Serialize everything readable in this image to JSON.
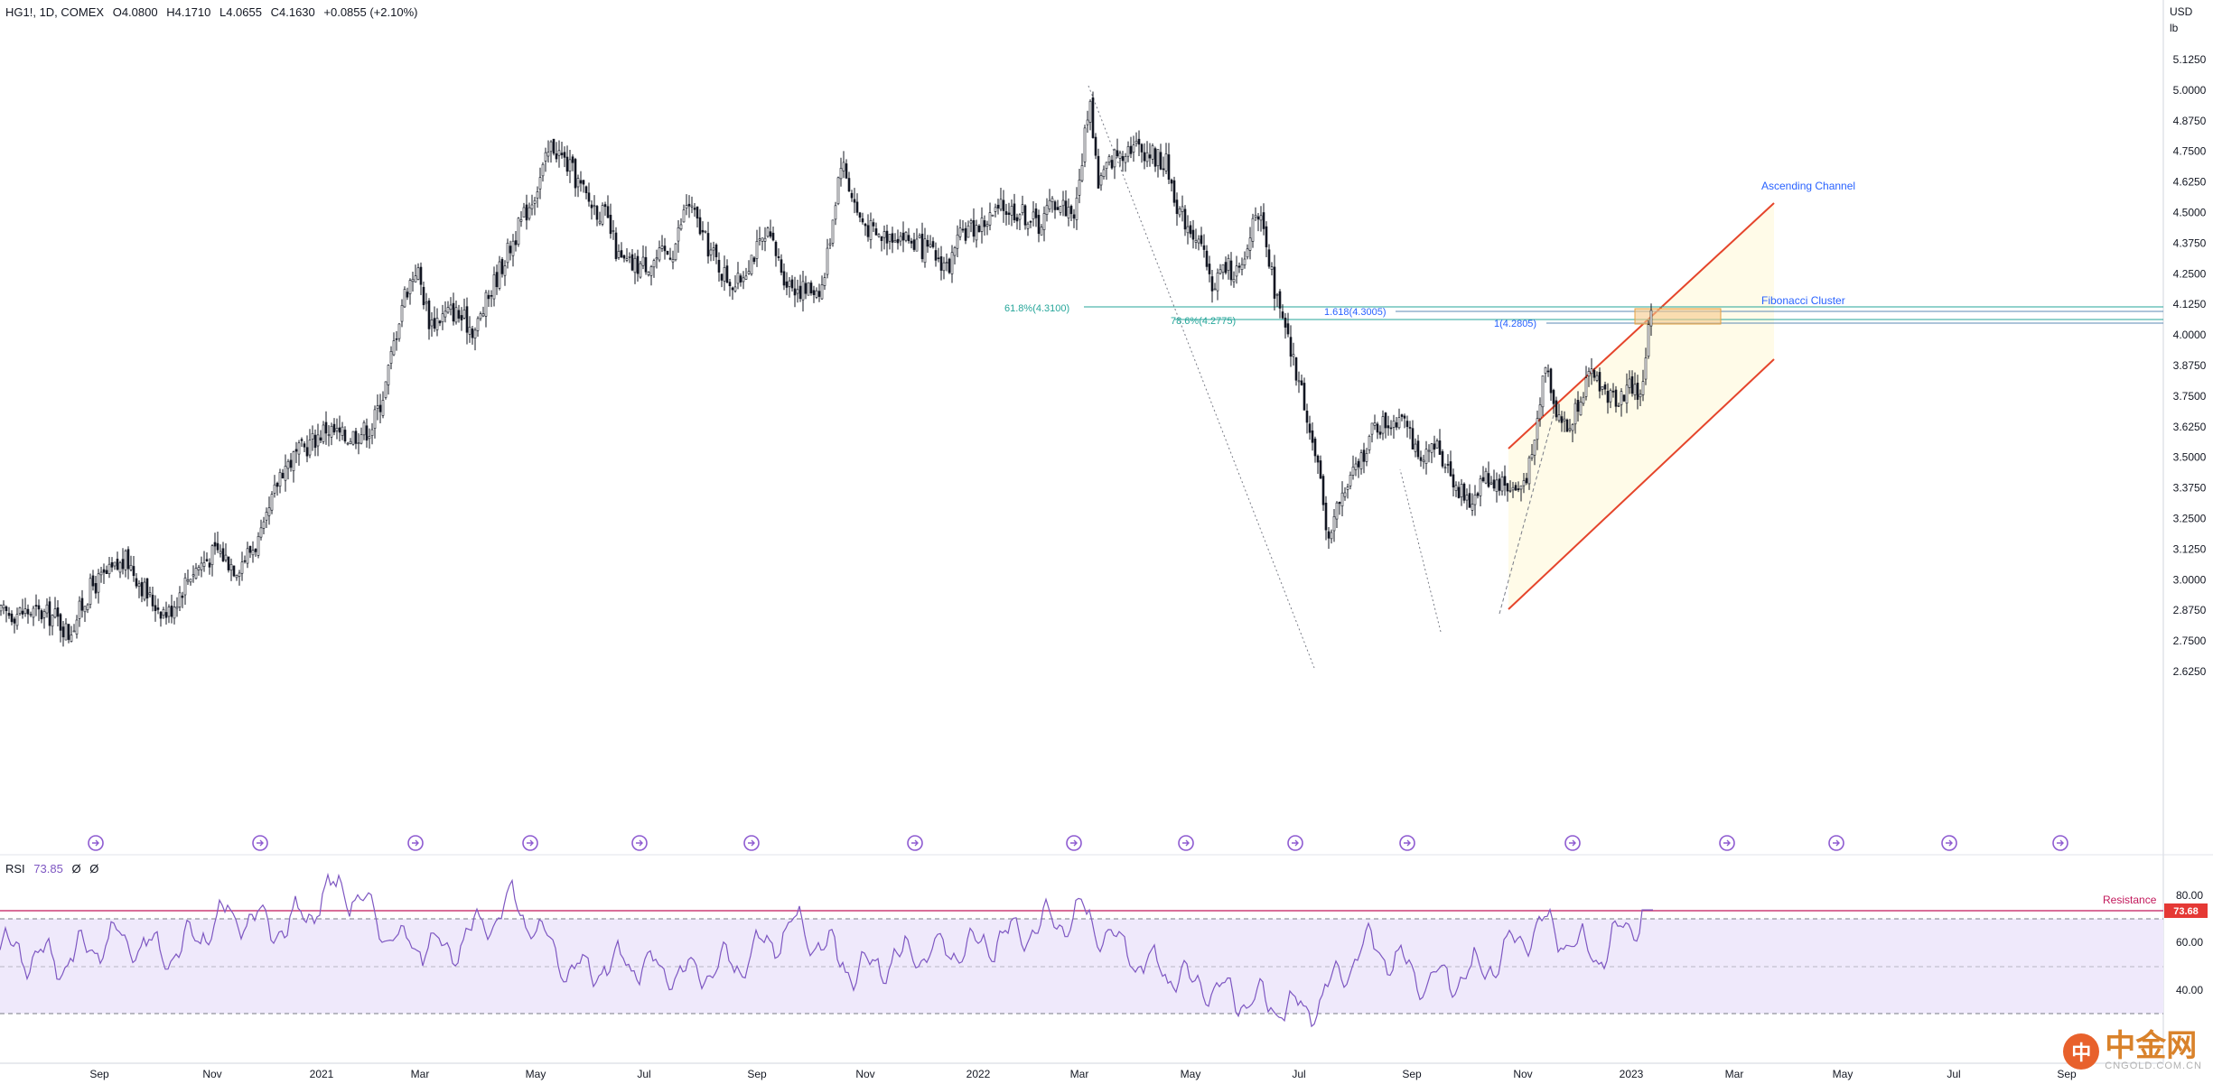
{
  "header": {
    "symbol": "HG1!, 1D, COMEX",
    "open": "O4.0800",
    "high": "H4.1710",
    "low": "L4.0655",
    "close": "C4.1630",
    "change": "+0.0855 (+2.10%)"
  },
  "price_axis": {
    "currency": "USD",
    "unit": "lb",
    "ticks": [
      "5.1250",
      "5.0000",
      "4.8750",
      "4.7500",
      "4.6250",
      "4.5000",
      "4.3750",
      "4.2500",
      "4.1250",
      "4.0000",
      "3.8750",
      "3.7500",
      "3.6250",
      "3.5000",
      "3.3750",
      "3.2500",
      "3.1250",
      "3.0000",
      "2.8750",
      "2.7500",
      "2.6250"
    ]
  },
  "time_axis": {
    "ticks": [
      "Sep",
      "Nov",
      "2021",
      "Mar",
      "May",
      "Jul",
      "Sep",
      "Nov",
      "2022",
      "Mar",
      "May",
      "Jul",
      "Sep",
      "Nov",
      "2023",
      "Mar",
      "May",
      "Jul",
      "Sep"
    ]
  },
  "annotations": {
    "ascending_channel": "Ascending Channel",
    "fibonacci_cluster": "Fibonacci Cluster",
    "fib_618": "61.8%(4.3100)",
    "fib_786": "78.6%(4.2775)",
    "fib_1618": "1.618(4.3005)",
    "fib_1": "1(4.2805)"
  },
  "rsi": {
    "label": "RSI",
    "value": "73.85",
    "extra1": "Ø",
    "extra2": "Ø",
    "ticks": [
      "80.00",
      "60.00",
      "40.00"
    ],
    "resistance_label": "Resistance",
    "resistance_value": "73.68"
  },
  "watermark": {
    "logo_char": "中",
    "brand": "中金网",
    "url": "CNGOLD.COM.CN"
  },
  "colors": {
    "candle": "#131722",
    "channel": "#e5452b",
    "channel_fill": "#fffbe8",
    "fib_green": "#26a69a",
    "fib_blue": "#2962ff",
    "cluster_fill": "#f6c98a",
    "rsi_line": "#7e57c2",
    "rsi_fill": "#efe9fb",
    "resistance": "#c2185b",
    "annotation_text": "#2962ff"
  },
  "chart_data": [
    {
      "type": "candlestick",
      "title": "HG1!, 1D, COMEX",
      "ylim": [
        2.55,
        5.2
      ],
      "series": [
        {
          "name": "HG1!",
          "x": [
            "2020-08",
            "2020-09",
            "2020-10",
            "2020-11",
            "2020-12",
            "2021-01",
            "2021-02",
            "2021-03",
            "2021-04",
            "2021-05",
            "2021-06",
            "2021-07",
            "2021-08",
            "2021-09",
            "2021-10",
            "2021-11",
            "2021-12",
            "2022-01",
            "2022-02",
            "2022-03",
            "2022-04",
            "2022-05",
            "2022-06",
            "2022-07",
            "2022-08",
            "2022-09",
            "2022-10",
            "2022-11",
            "2022-12",
            "2023-01"
          ],
          "close": [
            2.88,
            3.05,
            3.08,
            3.25,
            3.52,
            3.62,
            4.0,
            4.05,
            4.45,
            4.65,
            4.25,
            4.48,
            4.28,
            4.1,
            4.4,
            4.37,
            4.43,
            4.55,
            4.68,
            4.75,
            4.7,
            4.25,
            3.95,
            3.38,
            3.6,
            3.4,
            3.3,
            3.77,
            3.8,
            4.163
          ]
        }
      ]
    },
    {
      "type": "line",
      "title": "RSI",
      "ylim": [
        25,
        95
      ],
      "series": [
        {
          "name": "RSI",
          "x": [
            "2020-08",
            "2020-09",
            "2020-10",
            "2020-11",
            "2020-12",
            "2021-01",
            "2021-02",
            "2021-03",
            "2021-04",
            "2021-05",
            "2021-06",
            "2021-07",
            "2021-08",
            "2021-09",
            "2021-10",
            "2021-11",
            "2021-12",
            "2022-01",
            "2022-02",
            "2022-03",
            "2022-04",
            "2022-05",
            "2022-06",
            "2022-07",
            "2022-08",
            "2022-09",
            "2022-10",
            "2022-11",
            "2022-12",
            "2023-01"
          ],
          "values": [
            58,
            52,
            62,
            55,
            72,
            66,
            85,
            60,
            58,
            78,
            48,
            52,
            46,
            52,
            68,
            48,
            55,
            58,
            65,
            72,
            52,
            42,
            35,
            32,
            60,
            44,
            48,
            68,
            55,
            73.85
          ]
        }
      ]
    }
  ]
}
